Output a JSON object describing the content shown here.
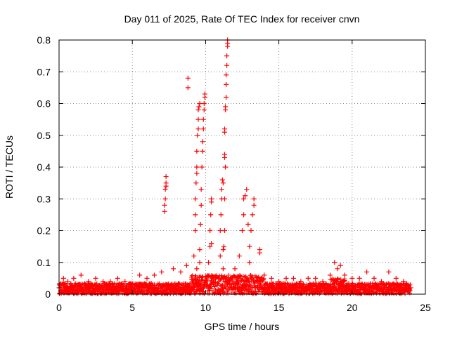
{
  "chart_data": {
    "type": "scatter",
    "title": "Day 011 of 2025, Rate Of TEC Index for receiver cnvn",
    "xlabel": "GPS time / hours",
    "ylabel": "ROTI / TECUs",
    "xlim": [
      0,
      25
    ],
    "ylim": [
      0,
      0.8
    ],
    "x_ticks": [
      "0",
      "5",
      "10",
      "15",
      "20",
      "25"
    ],
    "y_ticks": [
      "0",
      "0.1",
      "0.2",
      "0.3",
      "0.4",
      "0.5",
      "0.6",
      "0.7",
      "0.8"
    ],
    "grid": true,
    "marker": "+",
    "color": "#ff0000",
    "series": [
      {
        "name": "ROTI",
        "points": [
          [
            0.0,
            0.02
          ],
          [
            0.3,
            0.05
          ],
          [
            0.6,
            0.04
          ],
          [
            1.0,
            0.05
          ],
          [
            1.5,
            0.06
          ],
          [
            2.0,
            0.04
          ],
          [
            2.5,
            0.05
          ],
          [
            3.0,
            0.04
          ],
          [
            3.5,
            0.04
          ],
          [
            4.0,
            0.05
          ],
          [
            4.5,
            0.04
          ],
          [
            5.0,
            0.03
          ],
          [
            5.5,
            0.06
          ],
          [
            6.0,
            0.05
          ],
          [
            6.5,
            0.06
          ],
          [
            7.0,
            0.07
          ],
          [
            7.2,
            0.26
          ],
          [
            7.2,
            0.28
          ],
          [
            7.25,
            0.3
          ],
          [
            7.25,
            0.33
          ],
          [
            7.3,
            0.34
          ],
          [
            7.3,
            0.35
          ],
          [
            7.3,
            0.37
          ],
          [
            7.8,
            0.08
          ],
          [
            8.3,
            0.07
          ],
          [
            8.7,
            0.09
          ],
          [
            8.8,
            0.68
          ],
          [
            8.8,
            0.65
          ],
          [
            9.2,
            0.12
          ],
          [
            9.3,
            0.2
          ],
          [
            9.3,
            0.25
          ],
          [
            9.3,
            0.3
          ],
          [
            9.35,
            0.35
          ],
          [
            9.4,
            0.38
          ],
          [
            9.4,
            0.4
          ],
          [
            9.4,
            0.45
          ],
          [
            9.45,
            0.5
          ],
          [
            9.5,
            0.52
          ],
          [
            9.5,
            0.55
          ],
          [
            9.5,
            0.58
          ],
          [
            9.55,
            0.59
          ],
          [
            9.6,
            0.6
          ],
          [
            9.6,
            0.14
          ],
          [
            9.65,
            0.22
          ],
          [
            9.7,
            0.28
          ],
          [
            9.7,
            0.33
          ],
          [
            9.75,
            0.4
          ],
          [
            9.8,
            0.45
          ],
          [
            9.8,
            0.48
          ],
          [
            9.85,
            0.52
          ],
          [
            9.85,
            0.55
          ],
          [
            9.9,
            0.58
          ],
          [
            9.9,
            0.6
          ],
          [
            9.95,
            0.62
          ],
          [
            9.95,
            0.63
          ],
          [
            9.6,
            0.1
          ],
          [
            9.4,
            0.08
          ],
          [
            10.2,
            0.1
          ],
          [
            10.3,
            0.15
          ],
          [
            10.3,
            0.2
          ],
          [
            10.35,
            0.25
          ],
          [
            10.4,
            0.29
          ],
          [
            10.4,
            0.3
          ],
          [
            10.4,
            0.16
          ],
          [
            11.0,
            0.12
          ],
          [
            11.0,
            0.2
          ],
          [
            11.05,
            0.25
          ],
          [
            11.1,
            0.3
          ],
          [
            11.1,
            0.33
          ],
          [
            11.15,
            0.36
          ],
          [
            11.2,
            0.14
          ],
          [
            11.2,
            0.35
          ],
          [
            11.2,
            0.08
          ],
          [
            11.3,
            0.44
          ],
          [
            11.3,
            0.43
          ],
          [
            11.3,
            0.51
          ],
          [
            11.3,
            0.52
          ],
          [
            11.35,
            0.58
          ],
          [
            11.35,
            0.59
          ],
          [
            11.4,
            0.62
          ],
          [
            11.4,
            0.66
          ],
          [
            11.4,
            0.69
          ],
          [
            11.45,
            0.72
          ],
          [
            11.45,
            0.75
          ],
          [
            11.5,
            0.78
          ],
          [
            11.5,
            0.79
          ],
          [
            11.5,
            0.8
          ],
          [
            11.35,
            0.4
          ],
          [
            11.3,
            0.3
          ],
          [
            11.3,
            0.2
          ],
          [
            11.25,
            0.15
          ],
          [
            12.0,
            0.08
          ],
          [
            12.3,
            0.12
          ],
          [
            12.5,
            0.2
          ],
          [
            12.6,
            0.25
          ],
          [
            12.6,
            0.3
          ],
          [
            12.7,
            0.31
          ],
          [
            12.8,
            0.33
          ],
          [
            12.9,
            0.22
          ],
          [
            13.0,
            0.15
          ],
          [
            13.1,
            0.2
          ],
          [
            13.2,
            0.25
          ],
          [
            13.3,
            0.28
          ],
          [
            13.3,
            0.3
          ],
          [
            13.0,
            0.1
          ],
          [
            13.7,
            0.13
          ],
          [
            13.7,
            0.14
          ],
          [
            14.0,
            0.06
          ],
          [
            14.5,
            0.05
          ],
          [
            15.0,
            0.04
          ],
          [
            15.5,
            0.05
          ],
          [
            16.0,
            0.05
          ],
          [
            16.5,
            0.04
          ],
          [
            17.0,
            0.05
          ],
          [
            17.5,
            0.05
          ],
          [
            18.0,
            0.04
          ],
          [
            18.5,
            0.06
          ],
          [
            18.8,
            0.1
          ],
          [
            19.0,
            0.08
          ],
          [
            19.2,
            0.09
          ],
          [
            19.5,
            0.06
          ],
          [
            20.0,
            0.05
          ],
          [
            20.5,
            0.05
          ],
          [
            21.0,
            0.07
          ],
          [
            21.5,
            0.05
          ],
          [
            22.0,
            0.04
          ],
          [
            22.5,
            0.07
          ],
          [
            23.0,
            0.05
          ],
          [
            23.5,
            0.04
          ],
          [
            24.0,
            0.02
          ]
        ]
      }
    ]
  }
}
